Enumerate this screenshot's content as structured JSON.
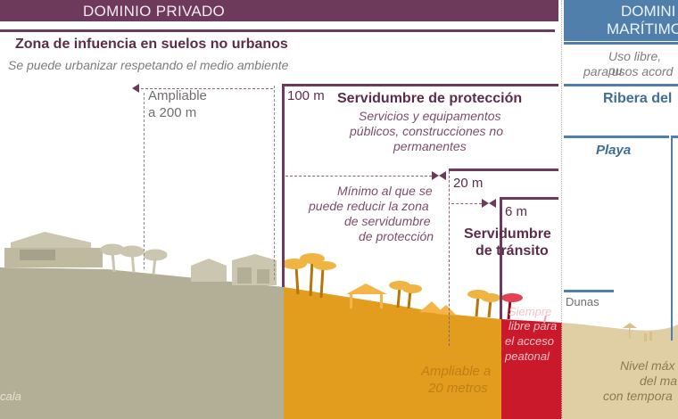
{
  "header": {
    "private_title": "DOMINIO PRIVADO",
    "public_title_line1": "DOMINI",
    "public_title_line2": "MARÍTIMO"
  },
  "influence_zone": {
    "title": "Zona de infuencia en suelos no urbanos",
    "subtitle": "Se puede urbanizar respetando el medio ambiente",
    "extend_label_line1": "Ampliable",
    "extend_label_line2": "a 200 m"
  },
  "protection_zone": {
    "distance": "100 m",
    "title": "Servidumbre de protección",
    "desc_line1": "Servicios y equipamentos",
    "desc_line2": "públicos, construcciones no",
    "desc_line3": "permanentes",
    "min_distance": "20 m",
    "min_line1": "Mínimo al que se",
    "min_line2": "puede reducir la zona",
    "min_line3": "de servidumbre",
    "min_line4": "de protección",
    "extend_line1": "Ampliable a",
    "extend_line2": "20 metros"
  },
  "transit_zone": {
    "distance": "6 m",
    "title_line1": "Servidumbre",
    "title_line2": "de tránsito",
    "note_line1": "Siempre",
    "note_line2": "libre para",
    "note_line3": "el acceso",
    "note_line4": "peatonal"
  },
  "public_domain": {
    "use_line1": "Uso libre, pu",
    "use_line2": "para usos acord",
    "shore_title": "Ribera del",
    "beach": "Playa",
    "dunes": "Dunas",
    "level_line1": "Nivel máx",
    "level_line2": "del ma",
    "level_line3": "con tempora"
  },
  "ground": {
    "left_label": "cala"
  },
  "colors": {
    "private": "#6e3a5b",
    "public": "#4f7faa",
    "grey_land": "#b3ae96",
    "orange_land": "#e29c1e",
    "red_land": "#c9192b",
    "beach_land": "#e0cfa4"
  }
}
